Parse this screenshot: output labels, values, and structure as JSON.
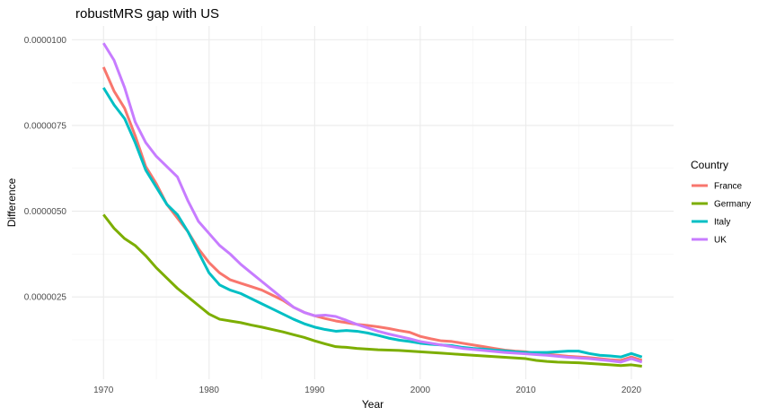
{
  "chart_data": {
    "type": "line",
    "title": "robustMRS gap with US",
    "xlabel": "Year",
    "ylabel": "Difference",
    "xlim": [
      1967,
      2024
    ],
    "ylim": [
      1e-07,
      1.04e-05
    ],
    "x_ticks": [
      1970,
      1980,
      1990,
      2000,
      2010,
      2020
    ],
    "x_tick_labels": [
      "1970",
      "1980",
      "1990",
      "2000",
      "2010",
      "2020"
    ],
    "y_ticks": [
      2.5e-06,
      5e-06,
      7.5e-06,
      1e-05
    ],
    "y_tick_labels": [
      "0.0000025",
      "0.0000050",
      "0.0000075",
      "0.0000100"
    ],
    "grid": true,
    "legend": {
      "title": "Country",
      "position": "right"
    },
    "x": [
      1970,
      1971,
      1972,
      1973,
      1974,
      1975,
      1976,
      1977,
      1978,
      1979,
      1980,
      1981,
      1982,
      1983,
      1984,
      1985,
      1986,
      1987,
      1988,
      1989,
      1990,
      1991,
      1992,
      1993,
      1994,
      1995,
      1996,
      1997,
      1998,
      1999,
      2000,
      2001,
      2002,
      2003,
      2004,
      2005,
      2006,
      2007,
      2008,
      2009,
      2010,
      2011,
      2012,
      2013,
      2014,
      2015,
      2016,
      2017,
      2018,
      2019,
      2020,
      2021
    ],
    "series": [
      {
        "name": "France",
        "color": "#F8766D",
        "values": [
          9.2e-06,
          8.5e-06,
          8e-06,
          7.2e-06,
          6.3e-06,
          5.8e-06,
          5.2e-06,
          4.8e-06,
          4.4e-06,
          3.9e-06,
          3.5e-06,
          3.2e-06,
          3e-06,
          2.9e-06,
          2.8e-06,
          2.7e-06,
          2.55e-06,
          2.4e-06,
          2.2e-06,
          2.05e-06,
          1.95e-06,
          1.87e-06,
          1.8e-06,
          1.75e-06,
          1.7e-06,
          1.67e-06,
          1.63e-06,
          1.58e-06,
          1.52e-06,
          1.47e-06,
          1.35e-06,
          1.28e-06,
          1.22e-06,
          1.2e-06,
          1.15e-06,
          1.1e-06,
          1.05e-06,
          1e-06,
          9.5e-07,
          9.2e-07,
          9e-07,
          8.5e-07,
          8.3e-07,
          8e-07,
          7.7e-07,
          7.5e-07,
          7.3e-07,
          7e-07,
          6.7e-07,
          6.5e-07,
          7.5e-07,
          6.5e-07
        ]
      },
      {
        "name": "Germany",
        "color": "#7CAE00",
        "values": [
          4.9e-06,
          4.5e-06,
          4.2e-06,
          4e-06,
          3.7e-06,
          3.35e-06,
          3.05e-06,
          2.75e-06,
          2.5e-06,
          2.25e-06,
          2e-06,
          1.85e-06,
          1.8e-06,
          1.75e-06,
          1.68e-06,
          1.62e-06,
          1.55e-06,
          1.48e-06,
          1.4e-06,
          1.32e-06,
          1.22e-06,
          1.13e-06,
          1.05e-06,
          1.03e-06,
          1e-06,
          9.8e-07,
          9.6e-07,
          9.5e-07,
          9.4e-07,
          9.2e-07,
          9e-07,
          8.8e-07,
          8.6e-07,
          8.4e-07,
          8.2e-07,
          8e-07,
          7.8e-07,
          7.6e-07,
          7.4e-07,
          7.2e-07,
          7e-07,
          6.5e-07,
          6.2e-07,
          6e-07,
          5.9e-07,
          5.8e-07,
          5.6e-07,
          5.4e-07,
          5.2e-07,
          5e-07,
          5.2e-07,
          4.8e-07
        ]
      },
      {
        "name": "Italy",
        "color": "#00BFC4",
        "values": [
          8.6e-06,
          8.1e-06,
          7.7e-06,
          7e-06,
          6.2e-06,
          5.7e-06,
          5.2e-06,
          4.9e-06,
          4.4e-06,
          3.8e-06,
          3.2e-06,
          2.85e-06,
          2.7e-06,
          2.6e-06,
          2.45e-06,
          2.3e-06,
          2.15e-06,
          2e-06,
          1.85e-06,
          1.72e-06,
          1.62e-06,
          1.55e-06,
          1.5e-06,
          1.52e-06,
          1.5e-06,
          1.45e-06,
          1.38e-06,
          1.3e-06,
          1.24e-06,
          1.2e-06,
          1.15e-06,
          1.12e-06,
          1.1e-06,
          1.08e-06,
          1.03e-06,
          1e-06,
          9.8e-07,
          9.5e-07,
          9.3e-07,
          9e-07,
          8.8e-07,
          8.8e-07,
          8.8e-07,
          9e-07,
          9.2e-07,
          9.2e-07,
          8.5e-07,
          8e-07,
          7.8e-07,
          7.5e-07,
          8.5e-07,
          7.5e-07
        ]
      },
      {
        "name": "UK",
        "color": "#C77CFF",
        "values": [
          9.9e-06,
          9.4e-06,
          8.6e-06,
          7.6e-06,
          7e-06,
          6.6e-06,
          6.3e-06,
          6e-06,
          5.3e-06,
          4.7e-06,
          4.35e-06,
          4e-06,
          3.75e-06,
          3.45e-06,
          3.2e-06,
          2.95e-06,
          2.7e-06,
          2.45e-06,
          2.2e-06,
          2.05e-06,
          1.95e-06,
          1.97e-06,
          1.93e-06,
          1.82e-06,
          1.7e-06,
          1.6e-06,
          1.5e-06,
          1.42e-06,
          1.35e-06,
          1.28e-06,
          1.2e-06,
          1.15e-06,
          1.1e-06,
          1.05e-06,
          1e-06,
          9.7e-07,
          9.4e-07,
          9.1e-07,
          8.8e-07,
          8.6e-07,
          8.4e-07,
          8.2e-07,
          8e-07,
          7.7e-07,
          7.4e-07,
          7.2e-07,
          7e-07,
          6.7e-07,
          6.4e-07,
          6e-07,
          7e-07,
          6e-07
        ]
      }
    ]
  }
}
